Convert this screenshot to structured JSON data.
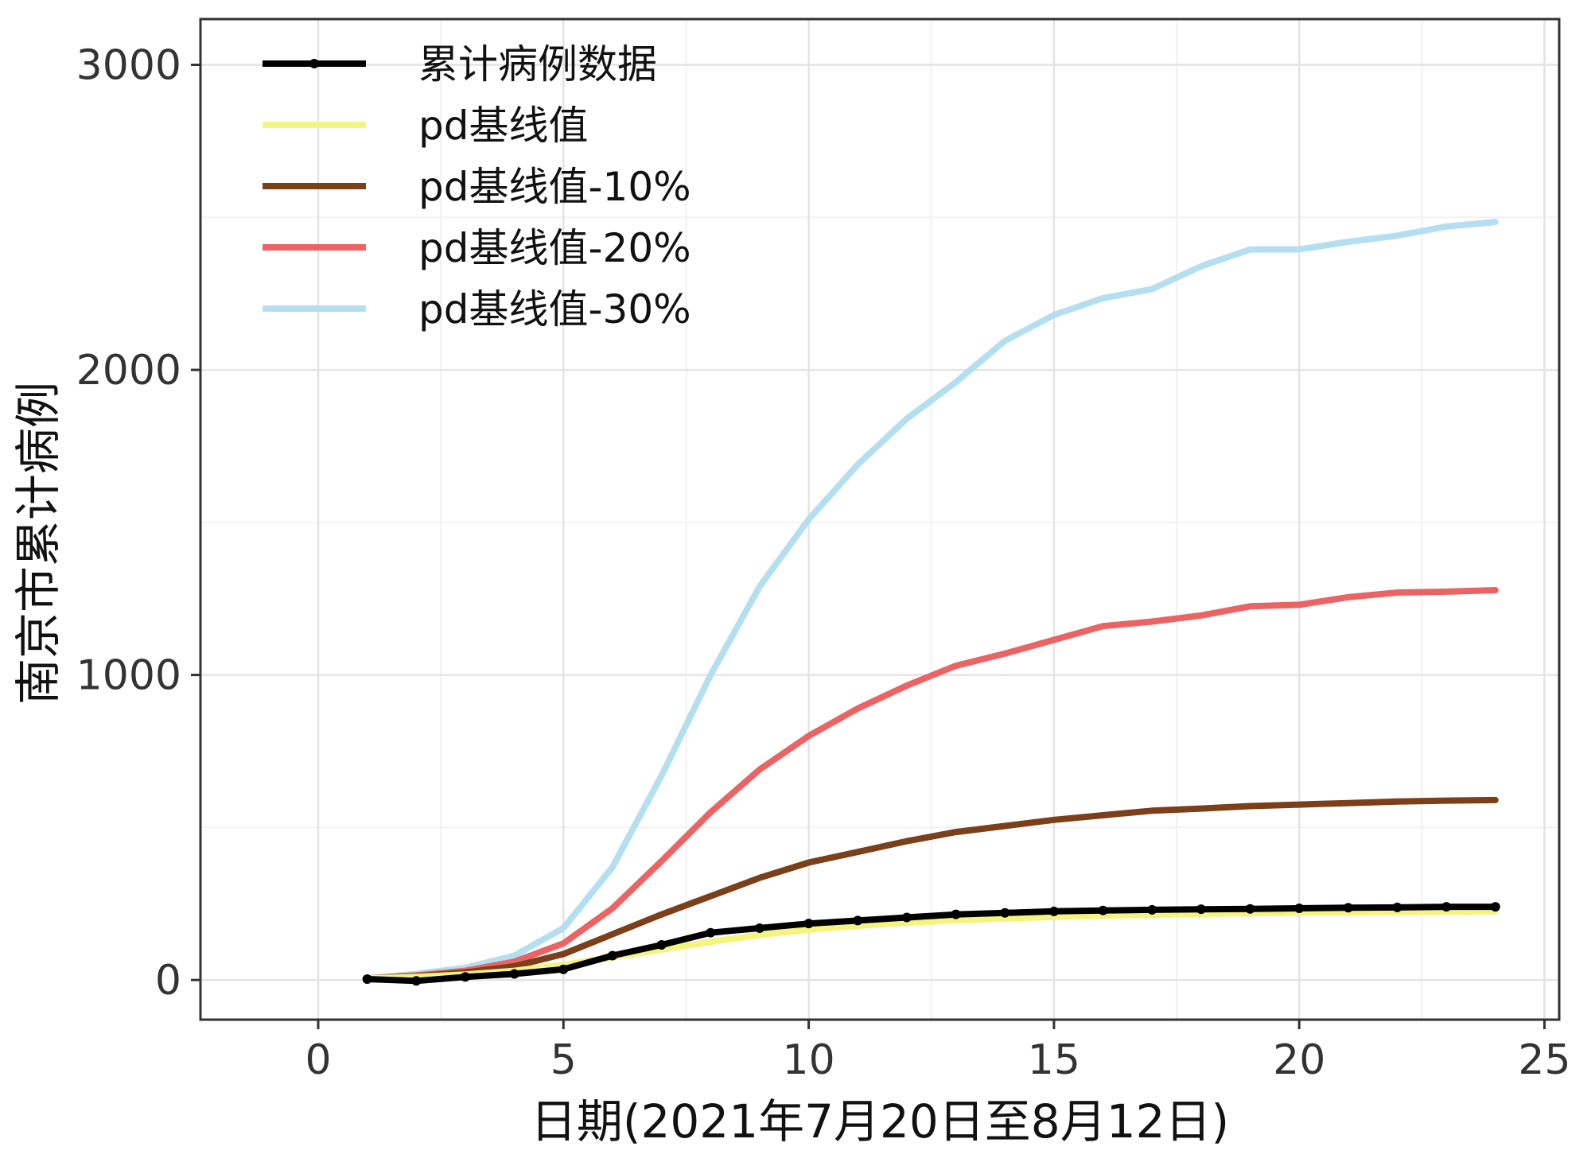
{
  "chart_data": {
    "type": "line",
    "title": "",
    "xlabel": "日期(2021年7月20日至8月12日)",
    "ylabel": "南京市累计病例",
    "xlim": [
      -2.4,
      25.3
    ],
    "ylim": [
      -130,
      3150
    ],
    "x_ticks": [
      0,
      5,
      10,
      15,
      20,
      25
    ],
    "x_tick_labels": [
      "0",
      "5",
      "10",
      "15",
      "20",
      "25"
    ],
    "y_ticks": [
      0,
      1000,
      2000,
      3000
    ],
    "y_tick_labels": [
      "0",
      "1000",
      "2000",
      "3000"
    ],
    "grid": true,
    "legend_position": "top-left",
    "series": [
      {
        "name": "累计病例数据",
        "color": "#000000",
        "marker": "point",
        "x": [
          1,
          2,
          3,
          4,
          5,
          6,
          7,
          8,
          9,
          10,
          11,
          12,
          13,
          14,
          15,
          16,
          17,
          18,
          19,
          20,
          21,
          22,
          23,
          24
        ],
        "values": [
          3,
          -3,
          10,
          20,
          35,
          80,
          115,
          155,
          170,
          185,
          195,
          205,
          215,
          220,
          225,
          228,
          230,
          232,
          233,
          235,
          237,
          238,
          240,
          240
        ]
      },
      {
        "name": "pd基线值",
        "color": "#f4f47e",
        "x": [
          1,
          2,
          3,
          4,
          5,
          6,
          7,
          8,
          9,
          10,
          11,
          12,
          13,
          14,
          15,
          16,
          17,
          18,
          19,
          20,
          21,
          22,
          23,
          24
        ],
        "values": [
          5,
          10,
          18,
          30,
          50,
          75,
          100,
          125,
          148,
          165,
          178,
          188,
          196,
          202,
          207,
          211,
          214,
          217,
          219,
          221,
          222,
          223,
          224,
          225
        ]
      },
      {
        "name": "pd基线值-10%",
        "color": "#7b3f1a",
        "x": [
          1,
          2,
          3,
          4,
          5,
          6,
          7,
          8,
          9,
          10,
          11,
          12,
          13,
          14,
          15,
          16,
          17,
          18,
          19,
          20,
          21,
          22,
          23,
          24
        ],
        "values": [
          5,
          12,
          25,
          45,
          85,
          150,
          215,
          275,
          335,
          385,
          420,
          455,
          485,
          505,
          525,
          540,
          555,
          562,
          570,
          575,
          580,
          585,
          588,
          590
        ]
      },
      {
        "name": "pd基线值-20%",
        "color": "#eb6363",
        "x": [
          1,
          2,
          3,
          4,
          5,
          6,
          7,
          8,
          9,
          10,
          11,
          12,
          13,
          14,
          15,
          16,
          17,
          18,
          19,
          20,
          21,
          22,
          23,
          24
        ],
        "values": [
          5,
          15,
          30,
          60,
          120,
          235,
          390,
          550,
          690,
          800,
          890,
          965,
          1030,
          1070,
          1115,
          1160,
          1175,
          1195,
          1225,
          1230,
          1255,
          1270,
          1273,
          1278
        ]
      },
      {
        "name": "pd基线值-30%",
        "color": "#b4dff0",
        "x": [
          1,
          2,
          3,
          4,
          5,
          6,
          7,
          8,
          9,
          10,
          11,
          12,
          13,
          14,
          15,
          16,
          17,
          18,
          19,
          20,
          21,
          22,
          23,
          24
        ],
        "values": [
          5,
          20,
          40,
          80,
          170,
          370,
          670,
          1000,
          1290,
          1510,
          1690,
          1840,
          1960,
          2095,
          2180,
          2235,
          2265,
          2340,
          2395,
          2395,
          2420,
          2440,
          2470,
          2485
        ]
      }
    ]
  }
}
